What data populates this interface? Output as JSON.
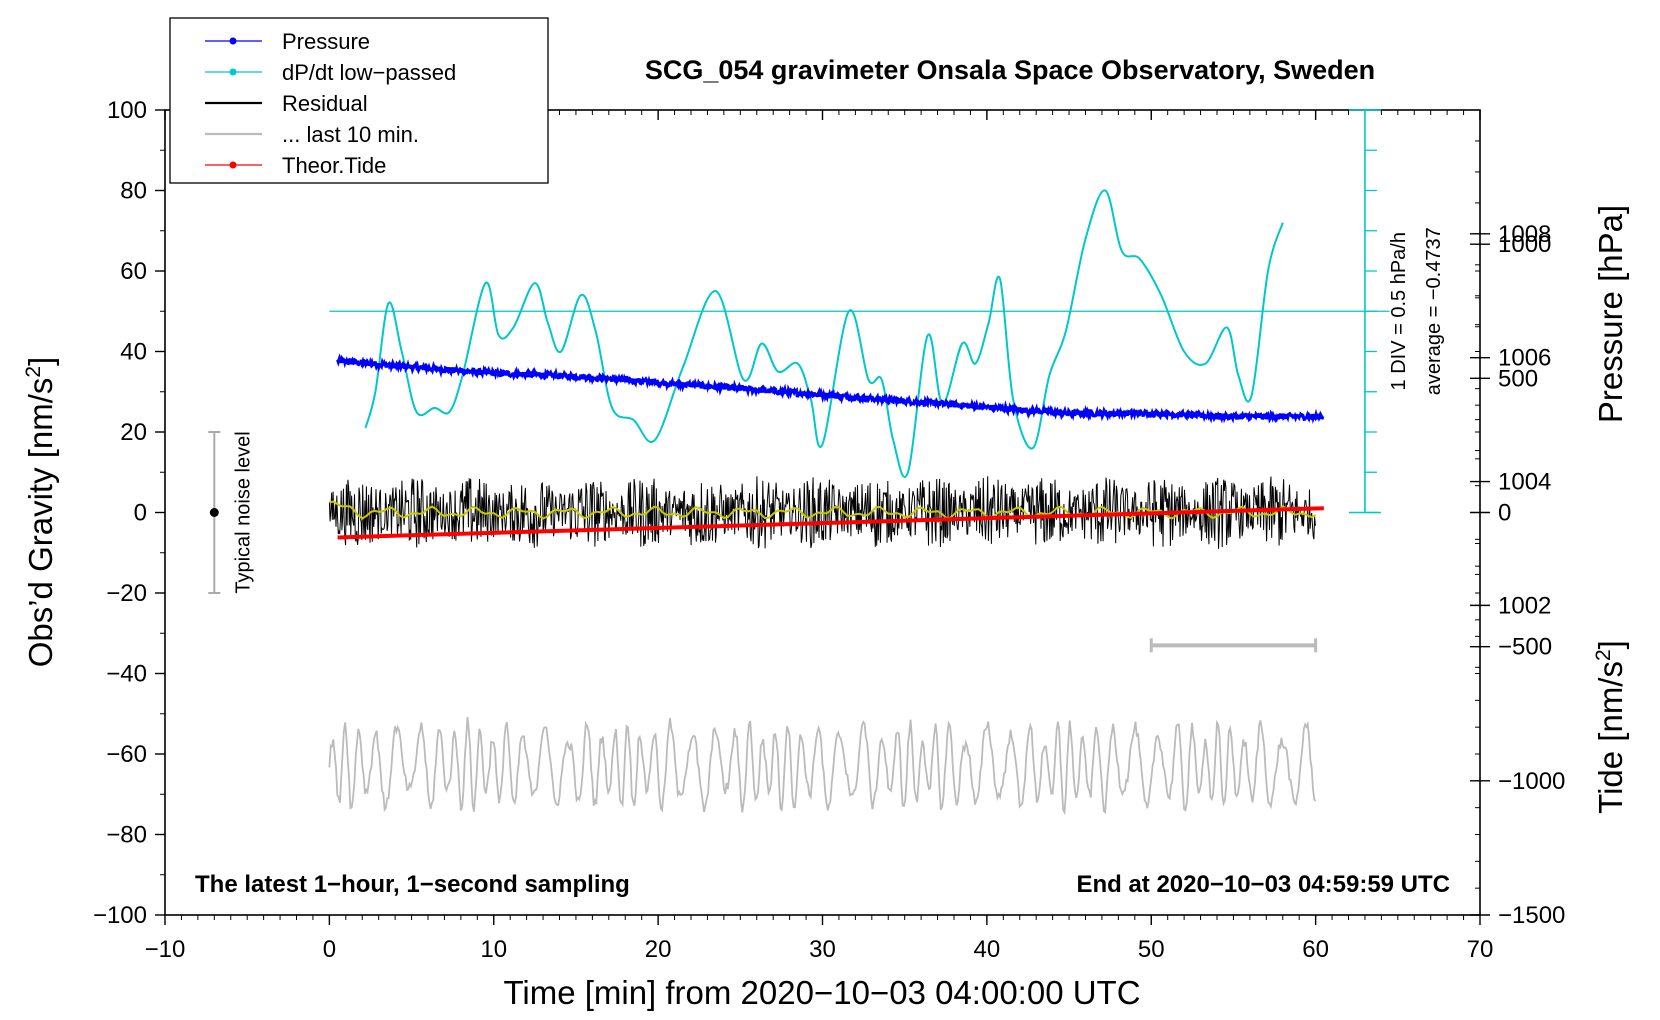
{
  "chart_data": {
    "type": "line",
    "title": "SCG_054 gravimeter Onsala Space Observatory, Sweden",
    "xlabel": "Time [min] from 2020−10−03 04:00:00 UTC",
    "ylabel": "Obs’d Gravity [nm/s²]",
    "ylabel_main": "Obs’d Gravity [nm/s",
    "ylabel_sup": "2",
    "ylabel_end": "]",
    "xlim": [
      -10,
      70
    ],
    "ylim": [
      -100,
      100
    ],
    "x_ticks": [
      "−10",
      "0",
      "10",
      "20",
      "30",
      "40",
      "50",
      "60",
      "70"
    ],
    "y_ticks": [
      "−100",
      "−80",
      "−60",
      "−40",
      "−20",
      "0",
      "20",
      "40",
      "60",
      "80",
      "100"
    ],
    "pressure_axis": {
      "label": "Pressure [hPa]",
      "ticks": [
        "1002",
        "1004",
        "1006",
        "1008"
      ],
      "tick_values": [
        1002,
        1004,
        1006,
        1008
      ],
      "range": [
        997,
        1010
      ]
    },
    "tide_axis": {
      "label_main": "Tide [nm/s",
      "label_sup": "2",
      "label_end": "]",
      "ticks": [
        "−1500",
        "−1000",
        "−500",
        "0",
        "500",
        "1000"
      ],
      "tick_values": [
        -1500,
        -1000,
        -500,
        0,
        500,
        1000
      ],
      "range": [
        -1500,
        1500
      ]
    },
    "dpdt_scale": {
      "label1": "1 DIV = 0.5 hPa/h",
      "label2": "average = −0.4737",
      "baseline_gravity_units": 50
    },
    "noise_bar": {
      "label": "Typical noise level",
      "x": -7,
      "center": 0,
      "low": -20,
      "high": 20
    },
    "ten_min_bar": {
      "x_start": 50,
      "x_end": 60,
      "y": -33
    },
    "legend": [
      {
        "label": "Pressure",
        "color": "#0000ff",
        "marker": true
      },
      {
        "label": "dP/dt low−passed",
        "color": "#00c8c8",
        "marker": true
      },
      {
        "label": "Residual",
        "color": "#000000",
        "marker": false
      },
      {
        "label": "... last 10 min.",
        "color": "#bbbbbb",
        "marker": false
      },
      {
        "label": "Theor.Tide",
        "color": "#ff0000",
        "marker": true
      }
    ],
    "note_left": "The latest 1−hour, 1−second sampling",
    "note_right": "End at 2020−10−03 04:59:59 UTC",
    "series": [
      {
        "name": "Pressure",
        "units": "hPa",
        "color": "#0000ff",
        "x": [
          0.5,
          5,
          10,
          15,
          20,
          25,
          30,
          35,
          40,
          45,
          50,
          55,
          60.5
        ],
        "values": [
          1005.95,
          1005.85,
          1005.75,
          1005.7,
          1005.6,
          1005.5,
          1005.4,
          1005.3,
          1005.2,
          1005.1,
          1005.1,
          1005.05,
          1005.05
        ]
      },
      {
        "name": "dP/dt low-passed",
        "units": "nm/s² plot units",
        "color": "#00c8c8",
        "x": [
          2.2,
          2.8,
          3.6,
          4.4,
          5.3,
          6.4,
          7.3,
          8.1,
          9.5,
          10.3,
          11.2,
          12.5,
          13.3,
          14.1,
          15.3,
          16.2,
          17.2,
          18.5,
          19.8,
          21.5,
          23.5,
          25.2,
          26.3,
          27.3,
          28.5,
          29.3,
          30.0,
          31.6,
          32.8,
          33.6,
          34.3,
          35.2,
          36.4,
          37.3,
          38.5,
          39.3,
          40.1,
          40.8,
          41.6,
          42.8,
          43.8,
          44.8,
          46.0,
          47.2,
          48.2,
          49.3,
          50.6,
          52.0,
          53.3,
          54.6,
          55.3,
          56.1,
          57.1,
          58.0
        ],
        "values": [
          21,
          30,
          52,
          40,
          25,
          26,
          25,
          34,
          57,
          44,
          46,
          57,
          47,
          40,
          54,
          45,
          26,
          23,
          18,
          36,
          55,
          33,
          42,
          35,
          37,
          28,
          17,
          50,
          33,
          33,
          18,
          10,
          44,
          27,
          42,
          37,
          47,
          58,
          28,
          16,
          34,
          45,
          68,
          80,
          65,
          63,
          54,
          40,
          37,
          46,
          34,
          29,
          60,
          72
        ]
      },
      {
        "name": "Residual",
        "units": "nm/s²",
        "color": "#000000",
        "x_range": [
          0,
          60
        ],
        "amplitude": 7,
        "running_mean_color": "#c8c800"
      },
      {
        "name": "Theor.Tide",
        "units": "nm/s²",
        "color": "#ff0000",
        "x": [
          0.5,
          60.5
        ],
        "values": [
          -93,
          16
        ]
      },
      {
        "name": "... last 10 min.",
        "units": "nm/s²",
        "color": "#bbbbbb",
        "x_range": [
          0,
          60
        ],
        "center": -63,
        "amplitude": 9
      }
    ]
  }
}
